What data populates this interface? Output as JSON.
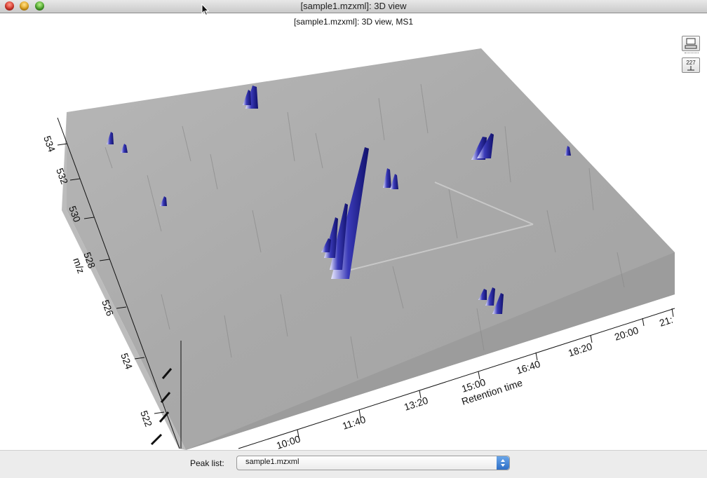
{
  "window": {
    "title": "[sample1.mzxml]: 3D view"
  },
  "chart": {
    "title": "[sample1.mzxml]: 3D view, MS1",
    "surface_color": "#a8a8a8",
    "peak_color": "#1a1a9a",
    "x_axis": {
      "label": "Retention time",
      "ticks": [
        "10:00",
        "11:40",
        "13:20",
        "15:00",
        "16:40",
        "18:20",
        "20:00",
        "21:"
      ]
    },
    "y_axis": {
      "label": "m/z",
      "ticks": [
        "522",
        "524",
        "526",
        "528",
        "530",
        "532",
        "534"
      ]
    }
  },
  "toolbar": {
    "buttons": [
      {
        "name": "computer-icon"
      },
      {
        "name": "axis-label-icon",
        "label": "227"
      }
    ]
  },
  "peak_list": {
    "label": "Peak list:",
    "value": "sample1.mzxml"
  }
}
